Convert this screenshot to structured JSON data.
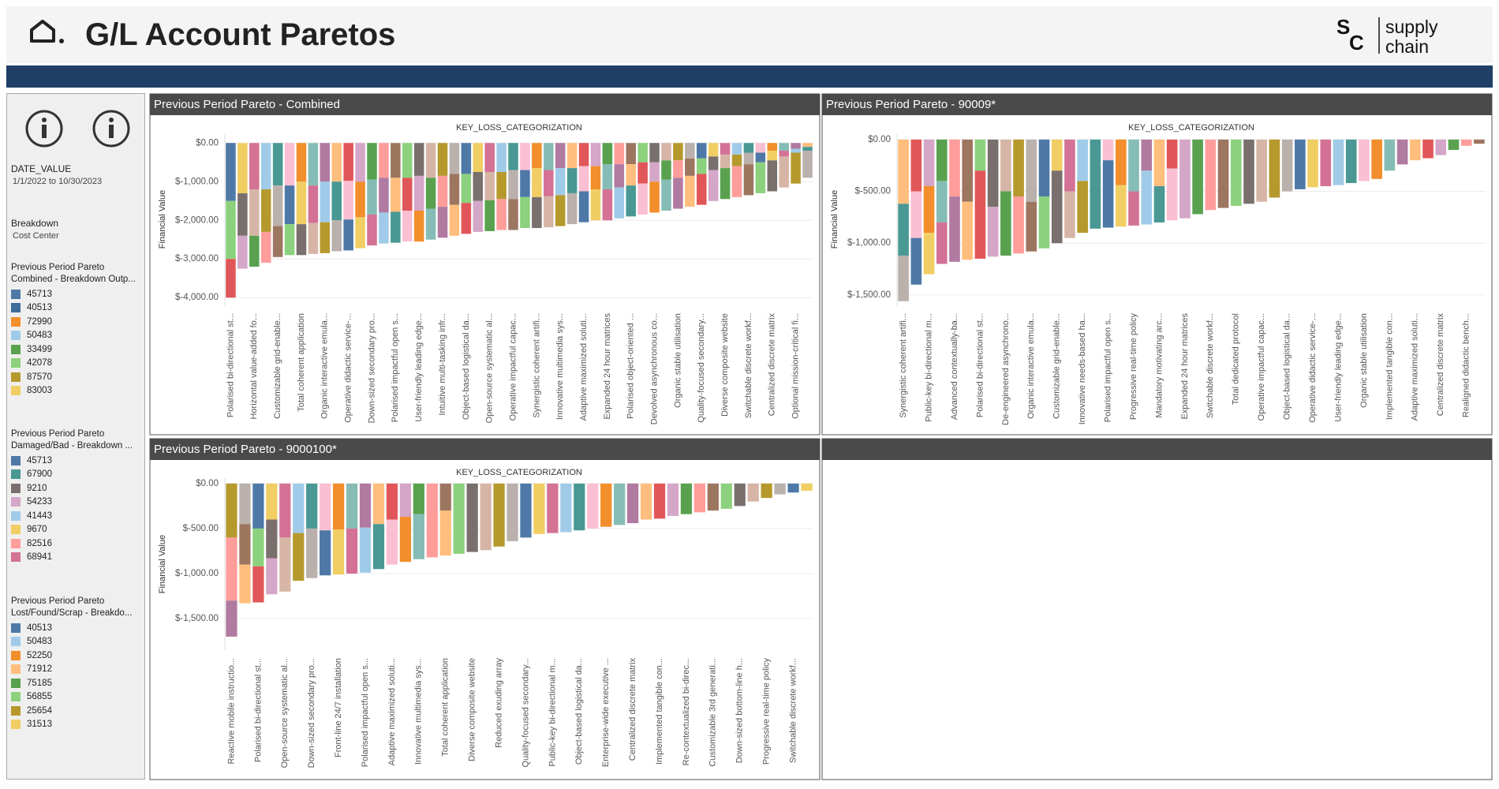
{
  "header": {
    "title": "G/L Account Paretos",
    "logo": {
      "s": "S",
      "c": "C",
      "line1": "supply",
      "line2": "chain"
    }
  },
  "sidebar": {
    "date_label": "DATE_VALUE",
    "date_range": "1/1/2022 to 10/30/2023",
    "breakdown_label": "Breakdown",
    "breakdown_value": "Cost Center",
    "legends": [
      {
        "title_lines": [
          "Previous Period Pareto",
          "Combined - Breakdown Outp..."
        ],
        "items": [
          {
            "label": "45713",
            "color": "#4e79a7"
          },
          {
            "label": "40513",
            "color": "#3f6c9a"
          },
          {
            "label": "72990",
            "color": "#f28e2b"
          },
          {
            "label": "50483",
            "color": "#a0cbe8"
          },
          {
            "label": "33499",
            "color": "#59a14f"
          },
          {
            "label": "42078",
            "color": "#8cd17d"
          },
          {
            "label": "87570",
            "color": "#b6992d"
          },
          {
            "label": "83003",
            "color": "#f1ce63"
          }
        ]
      },
      {
        "title_lines": [
          "Previous Period Pareto",
          "Damaged/Bad - Breakdown ..."
        ],
        "items": [
          {
            "label": "45713",
            "color": "#4e79a7"
          },
          {
            "label": "67900",
            "color": "#499894"
          },
          {
            "label": "9210",
            "color": "#79706e"
          },
          {
            "label": "54233",
            "color": "#d4a6c8"
          },
          {
            "label": "41443",
            "color": "#a0cbe8"
          },
          {
            "label": "9670",
            "color": "#f1ce63"
          },
          {
            "label": "82516",
            "color": "#ff9d9a"
          },
          {
            "label": "68941",
            "color": "#d37295"
          }
        ]
      },
      {
        "title_lines": [
          "Previous Period Pareto",
          "Lost/Found/Scrap - Breakdo..."
        ],
        "items": [
          {
            "label": "40513",
            "color": "#4e79a7"
          },
          {
            "label": "50483",
            "color": "#a0cbe8"
          },
          {
            "label": "52250",
            "color": "#f28e2b"
          },
          {
            "label": "71912",
            "color": "#ffbe7d"
          },
          {
            "label": "75185",
            "color": "#59a14f"
          },
          {
            "label": "56855",
            "color": "#8cd17d"
          },
          {
            "label": "25654",
            "color": "#b6992d"
          },
          {
            "label": "31513",
            "color": "#f1ce63"
          }
        ]
      }
    ]
  },
  "palette": [
    "#4e79a7",
    "#a0cbe8",
    "#f28e2b",
    "#ffbe7d",
    "#59a14f",
    "#8cd17d",
    "#b6992d",
    "#f1ce63",
    "#499894",
    "#86bcb6",
    "#e15759",
    "#ff9d9a",
    "#79706e",
    "#bab0ac",
    "#d37295",
    "#fabfd2",
    "#b07aa1",
    "#d4a6c8",
    "#9d7660",
    "#d7b5a6"
  ],
  "chart_data": [
    {
      "type": "stacked_bar",
      "title": "Previous Period Pareto - Combined",
      "x_label": "KEY_LOSS_CATEGORIZATION",
      "y_label": "Financial Value",
      "ylim": [
        -4200,
        250
      ],
      "yticks": [
        {
          "value": 0,
          "label": "$0.00"
        },
        {
          "value": -1000,
          "label": "$-1,000.00"
        },
        {
          "value": -2000,
          "label": "$-2,000.00"
        },
        {
          "value": -3000,
          "label": "$-3,000.00"
        },
        {
          "value": -4000,
          "label": "$-4,000.00"
        }
      ],
      "grid": true,
      "categories": [
        "Polarised bi-directional st...",
        null,
        "Horizontal value-added fo...",
        null,
        "Customizable grid-enable...",
        null,
        "Total coherent application",
        null,
        "Organic interactive emula...",
        null,
        "Operative didactic service-...",
        null,
        "Down-sized secondary pro...",
        null,
        "Polarised impactful open s...",
        null,
        "User-friendly leading edge...",
        null,
        "Intuitive multi-tasking infr...",
        null,
        "Object-based logistical da...",
        null,
        "Open-source systematic al...",
        null,
        "Operative impactful capac...",
        null,
        "Synergistic coherent artifi...",
        null,
        "Innovative multimedia sys...",
        null,
        "Adaptive maximized soluti...",
        null,
        "Expanded 24 hour matrices",
        null,
        "Polarised object-oriented ...",
        null,
        "Devolved asynchronous co...",
        null,
        "Organic stable utilisation",
        null,
        "Quality-focused secondary...",
        null,
        "Diverse composite website",
        null,
        "Switchable discrete workf...",
        null,
        "Centralized discrete matrix",
        null,
        "Optional mission-critical fi...",
        null
      ],
      "values": [
        [
          -1500,
          -1500,
          -1000
        ],
        [
          -1300,
          -1100,
          -850
        ],
        [
          -1200,
          -1200,
          -800
        ],
        [
          -1200,
          -1100,
          -800
        ],
        [
          -1100,
          -1050,
          -800
        ],
        [
          -1100,
          -1000,
          -800
        ],
        [
          -1000,
          -1100,
          -800
        ],
        [
          -1100,
          -970,
          -800
        ],
        [
          -1000,
          -1050,
          -800
        ],
        [
          -1000,
          -1000,
          -800
        ],
        [
          -980,
          -1000,
          -800
        ],
        [
          -1000,
          -920,
          -800
        ],
        [
          -950,
          -900,
          -800
        ],
        [
          -900,
          -900,
          -800
        ],
        [
          -900,
          -880,
          -800
        ],
        [
          -900,
          -850,
          -800
        ],
        [
          -850,
          -900,
          -800
        ],
        [
          -900,
          -800,
          -800
        ],
        [
          -850,
          -800,
          -800
        ],
        [
          -800,
          -800,
          -800
        ],
        [
          -800,
          -750,
          -800
        ],
        [
          -750,
          -750,
          -800
        ],
        [
          -750,
          -730,
          -800
        ],
        [
          -750,
          -700,
          -800
        ],
        [
          -700,
          -750,
          -800
        ],
        [
          -700,
          -700,
          -800
        ],
        [
          -650,
          -750,
          -800
        ],
        [
          -700,
          -680,
          -800
        ],
        [
          -650,
          -700,
          -800
        ],
        [
          -650,
          -650,
          -800
        ],
        [
          -600,
          -650,
          -800
        ],
        [
          -600,
          -600,
          -800
        ],
        [
          -550,
          -650,
          -800
        ],
        [
          -550,
          -600,
          -800
        ],
        [
          -550,
          -550,
          -800
        ],
        [
          -500,
          -550,
          -800
        ],
        [
          -500,
          -500,
          -800
        ],
        [
          -450,
          -500,
          -800
        ],
        [
          -450,
          -450,
          -800
        ],
        [
          -400,
          -450,
          -800
        ],
        [
          -400,
          -400,
          -800
        ],
        [
          -350,
          -350,
          -800
        ],
        [
          -300,
          -350,
          -800
        ],
        [
          -300,
          -300,
          -800
        ],
        [
          -250,
          -300,
          -800
        ],
        [
          -250,
          -250,
          -800
        ],
        [
          -200,
          -250,
          -800
        ],
        [
          -200,
          -150,
          -800
        ],
        [
          -150,
          -100,
          -800
        ],
        [
          -100,
          -100,
          -700
        ]
      ]
    },
    {
      "type": "stacked_bar",
      "title": "Previous Period Pareto - 90009*",
      "x_label": "KEY_LOSS_CATEGORIZATION",
      "y_label": "Financial Value",
      "ylim": [
        -1600,
        60
      ],
      "yticks": [
        {
          "value": 0,
          "label": "$0.00"
        },
        {
          "value": -500,
          "label": "$-500.00"
        },
        {
          "value": -1000,
          "label": "$-1,000.00"
        },
        {
          "value": -1500,
          "label": "$-1,500.00"
        }
      ],
      "grid": true,
      "categories": [
        "Synergistic coherent artifi...",
        null,
        "Public-key bi-directional m...",
        null,
        "Advanced contextually-ba...",
        null,
        "Polarised bi-directional st...",
        null,
        "De-engineered asynchrono...",
        null,
        "Organic interactive emula...",
        null,
        "Customizable grid-enable...",
        null,
        "Innovative needs-based ha...",
        null,
        "Polarised impactful open s...",
        null,
        "Progressive real-time policy",
        null,
        "Mandatory motivating arc...",
        null,
        "Expanded 24 hour matrices",
        null,
        "Switchable discrete workf...",
        null,
        "Total dedicated protocol",
        null,
        "Operative impactful capac...",
        null,
        "Object-based logistical da...",
        null,
        "Operative didactic service-...",
        null,
        "User-friendly leading edge...",
        null,
        "Organic stable utilisation",
        null,
        "Implemented tangible con...",
        null,
        "Adaptive maximized soluti...",
        null,
        "Centralized discrete matrix",
        null,
        "Realigned didactic bench...",
        null
      ],
      "values": [
        [
          -620,
          -500,
          -440
        ],
        [
          -500,
          -450,
          -450
        ],
        [
          -450,
          -450,
          -400
        ],
        [
          -400,
          -400,
          -400
        ],
        [
          -550,
          -630
        ],
        [
          -600,
          -560
        ],
        [
          -300,
          -850
        ],
        [
          -650,
          -480
        ],
        [
          -500,
          -620
        ],
        [
          -550,
          -550
        ],
        [
          -600,
          -480
        ],
        [
          -550,
          -500
        ],
        [
          -300,
          -700
        ],
        [
          -500,
          -450
        ],
        [
          -400,
          -500
        ],
        [
          -860
        ],
        [
          -200,
          -650
        ],
        [
          -440,
          -400
        ],
        [
          -500,
          -330
        ],
        [
          -300,
          -520
        ],
        [
          -450,
          -350
        ],
        [
          -280,
          -500
        ],
        [
          -760
        ],
        [
          -720
        ],
        [
          -680
        ],
        [
          -660
        ],
        [
          -640
        ],
        [
          -620
        ],
        [
          -600
        ],
        [
          -560
        ],
        [
          -500
        ],
        [
          -480
        ],
        [
          -460
        ],
        [
          -450
        ],
        [
          -440
        ],
        [
          -420
        ],
        [
          -400
        ],
        [
          -380
        ],
        [
          -300
        ],
        [
          -240
        ],
        [
          -200
        ],
        [
          -180
        ],
        [
          -150
        ],
        [
          -100
        ],
        [
          -60
        ],
        [
          -40
        ]
      ]
    },
    {
      "type": "stacked_bar",
      "title": "Previous Period Pareto - 9000100*",
      "x_label": "KEY_LOSS_CATEGORIZATION",
      "y_label": "Financial Value",
      "ylim": [
        -1850,
        60
      ],
      "yticks": [
        {
          "value": 0,
          "label": "$0.00"
        },
        {
          "value": -500,
          "label": "$-500.00"
        },
        {
          "value": -1000,
          "label": "$-1,000.00"
        },
        {
          "value": -1500,
          "label": "$-1,500.00"
        }
      ],
      "grid": true,
      "categories": [
        "Reactive mobile instructio...",
        null,
        "Polarised bi-directional st...",
        null,
        "Open-source systematic al...",
        null,
        "Down-sized secondary pro...",
        null,
        "Front-line 24/7 installation",
        null,
        "Polarised impactful open s...",
        null,
        "Adaptive maximized soluti...",
        null,
        "Innovative multimedia sys...",
        null,
        "Total coherent application",
        null,
        "Diverse composite website",
        null,
        "Reduced exuding array",
        null,
        "Quality-focused secondary...",
        null,
        "Public-key bi-directional m...",
        null,
        "Object-based logistical da...",
        null,
        "Enterprise-wide executive ...",
        null,
        "Centralized discrete matrix",
        null,
        "Implemented tangible con...",
        null,
        "Re-contextualized bi-direc...",
        null,
        "Customizable 3rd generati...",
        null,
        "Down-sized bottom-line h...",
        null,
        "Progressive real-time policy",
        null,
        "Switchable discrete workf...",
        null
      ],
      "values": [
        [
          -600,
          -700,
          -400
        ],
        [
          -450,
          -450,
          -430
        ],
        [
          -500,
          -420,
          -400
        ],
        [
          -400,
          -430,
          -400
        ],
        [
          -600,
          -600
        ],
        [
          -550,
          -530
        ],
        [
          -500,
          -550
        ],
        [
          -520,
          -500
        ],
        [
          -510,
          -500
        ],
        [
          -500,
          -500
        ],
        [
          -490,
          -500
        ],
        [
          -450,
          -500
        ],
        [
          -400,
          -500
        ],
        [
          -370,
          -500
        ],
        [
          -340,
          -500
        ],
        [
          -820
        ],
        [
          -300,
          -500
        ],
        [
          -780
        ],
        [
          -760
        ],
        [
          -740
        ],
        [
          -700
        ],
        [
          -640
        ],
        [
          -600
        ],
        [
          -560
        ],
        [
          -550
        ],
        [
          -540
        ],
        [
          -520
        ],
        [
          -500
        ],
        [
          -480
        ],
        [
          -460
        ],
        [
          -440
        ],
        [
          -400
        ],
        [
          -390
        ],
        [
          -360
        ],
        [
          -340
        ],
        [
          -320
        ],
        [
          -300
        ],
        [
          -280
        ],
        [
          -250
        ],
        [
          -200
        ],
        [
          -160
        ],
        [
          -120
        ],
        [
          -100
        ],
        [
          -80
        ]
      ]
    }
  ]
}
